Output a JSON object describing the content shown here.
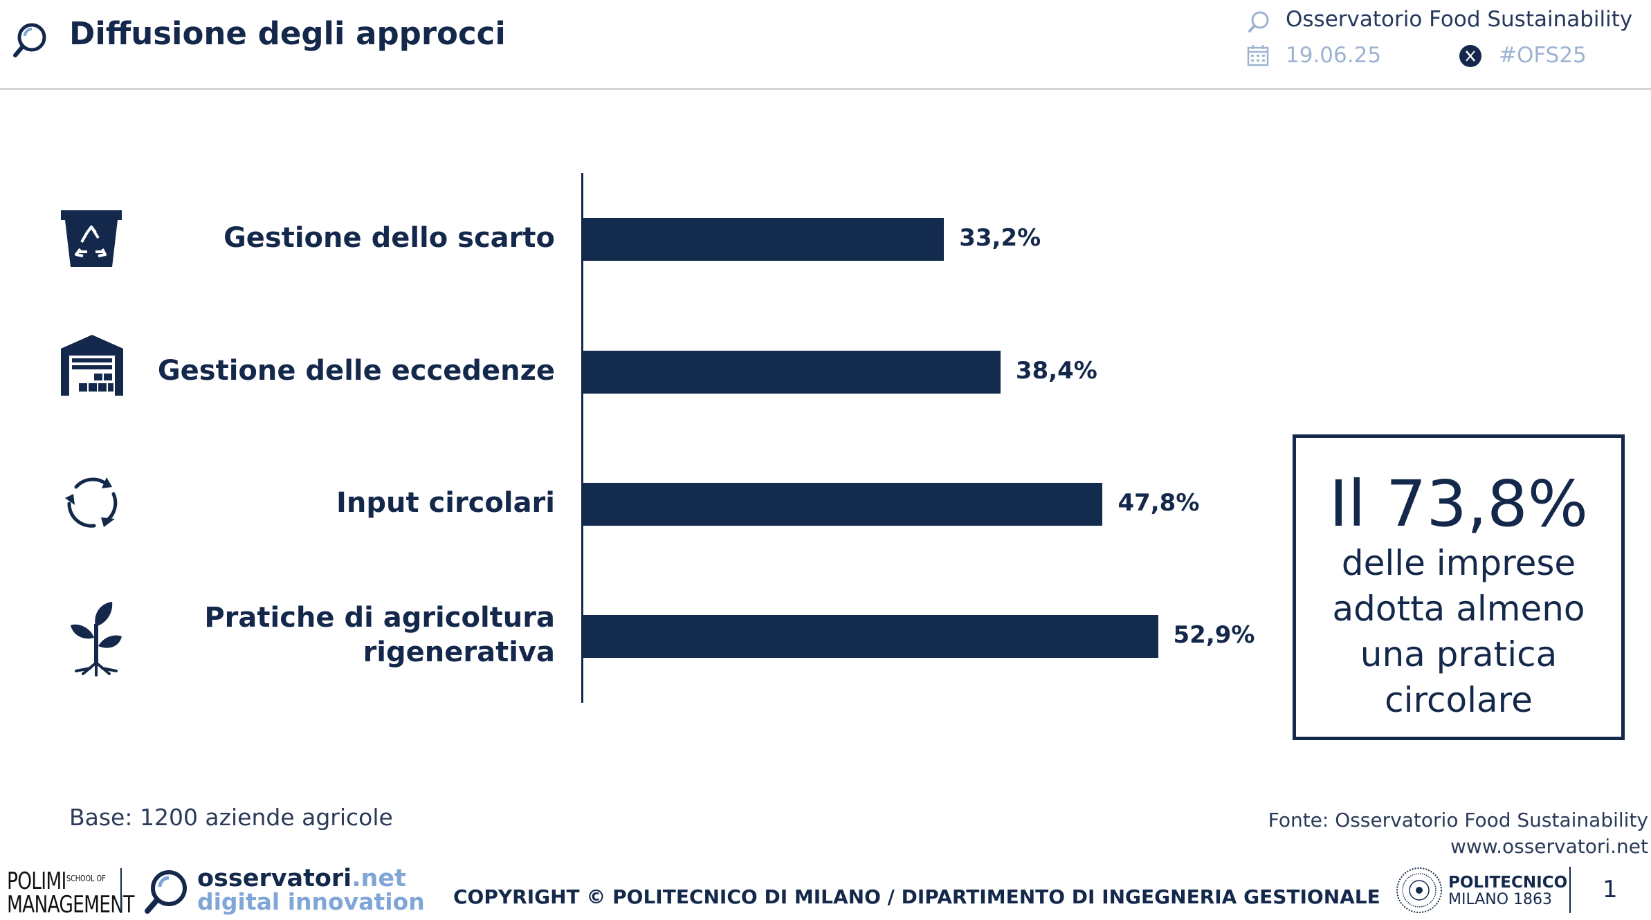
{
  "header": {
    "title": "Diffusione degli approcci",
    "observatory": "Osservatorio Food Sustainability",
    "date": "19.06.25",
    "hashtag": "#OFS25"
  },
  "chart_data": {
    "type": "bar",
    "orientation": "horizontal",
    "categories": [
      "Gestione dello scarto",
      "Gestione delle eccedenze",
      "Input circolari",
      "Pratiche di agricoltura rigenerativa"
    ],
    "category_lines": [
      [
        "Gestione dello scarto"
      ],
      [
        "Gestione delle eccedenze"
      ],
      [
        "Input circolari"
      ],
      [
        "Pratiche di agricoltura",
        "rigenerativa"
      ]
    ],
    "values": [
      33.2,
      38.4,
      47.8,
      52.9
    ],
    "value_labels": [
      "33,2%",
      "38,4%",
      "47,8%",
      "52,9%"
    ],
    "icons": [
      "recycle-bin-icon",
      "warehouse-icon",
      "circular-arrows-icon",
      "plant-roots-icon"
    ],
    "bar_color": "#132b4d",
    "grid": false,
    "legend": "none"
  },
  "highlight": {
    "big": "Il 73,8%",
    "lines": [
      "delle imprese",
      "adotta almeno",
      "una pratica",
      "circolare"
    ]
  },
  "footer": {
    "base": "Base: 1200 aziende agricole",
    "source": "Fonte: Osservatorio Food Sustainability",
    "website": "www.osservatori.net",
    "copyright": "COPYRIGHT © POLITECNICO DI MILANO / DIPARTIMENTO DI INGEGNERIA GESTIONALE",
    "page_number": "1",
    "polimi_top": "POLIMI",
    "polimi_school_1": "SCHOOL OF",
    "polimi_bottom": "MANAGEMENT",
    "osservatori_name": "osservatori",
    "osservatori_suffix": ".net",
    "osservatori_sub": "digital innovation",
    "politecnico_1": "POLITECNICO",
    "politecnico_2": "MILANO 1863"
  }
}
